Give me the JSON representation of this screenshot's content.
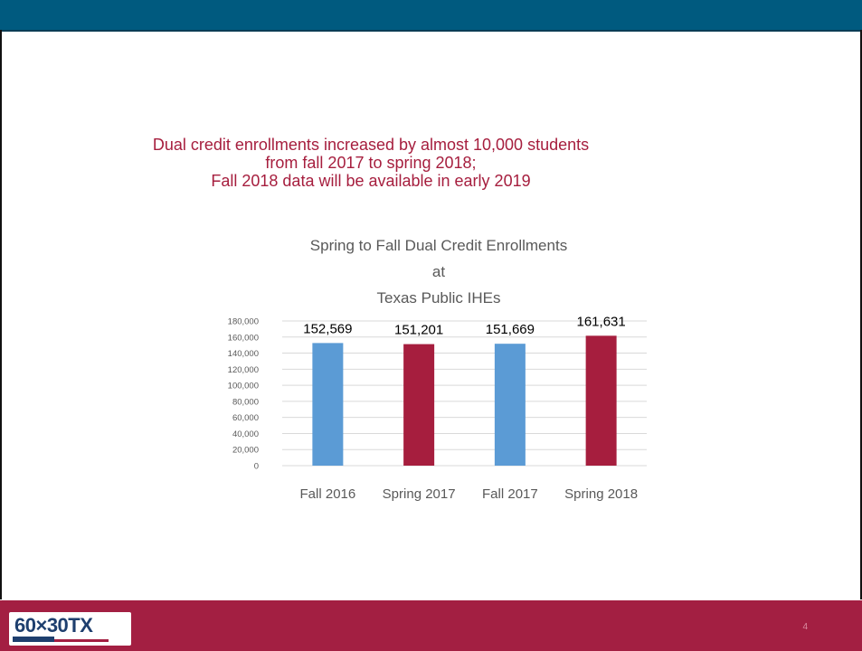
{
  "headline": {
    "line1": "Dual credit enrollments increased by almost 10,000 students",
    "line2": "from fall 2017 to spring 2018;",
    "line3": "Fall 2018 data will be available in early 2019"
  },
  "chart_data": {
    "type": "bar",
    "title_lines": [
      "Spring to Fall Dual Credit Enrollments",
      "at",
      "Texas Public IHEs"
    ],
    "categories": [
      "Fall 2016",
      "Spring 2017",
      "Fall 2017",
      "Spring 2018"
    ],
    "values": [
      152569,
      151201,
      151669,
      161631
    ],
    "value_labels": [
      "152,569",
      "151,201",
      "151,669",
      "161,631"
    ],
    "bar_colors": [
      "#5b9bd5",
      "#a61e3e",
      "#5b9bd5",
      "#a61e3e"
    ],
    "ylim": [
      0,
      180000
    ],
    "y_ticks": [
      0,
      20000,
      40000,
      60000,
      80000,
      100000,
      120000,
      140000,
      160000,
      180000
    ],
    "y_tick_labels": [
      "0",
      "20,000",
      "40,000",
      "60,000",
      "80,000",
      "100,000",
      "120,000",
      "140,000",
      "160,000",
      "180,000"
    ],
    "grid": true,
    "legend": "none"
  },
  "footer": {
    "logo_text": "60×30TX",
    "page_number": "4"
  },
  "colors": {
    "top_bar": "#005a7f",
    "footer": "#a31f42",
    "headline": "#a61e3e"
  }
}
